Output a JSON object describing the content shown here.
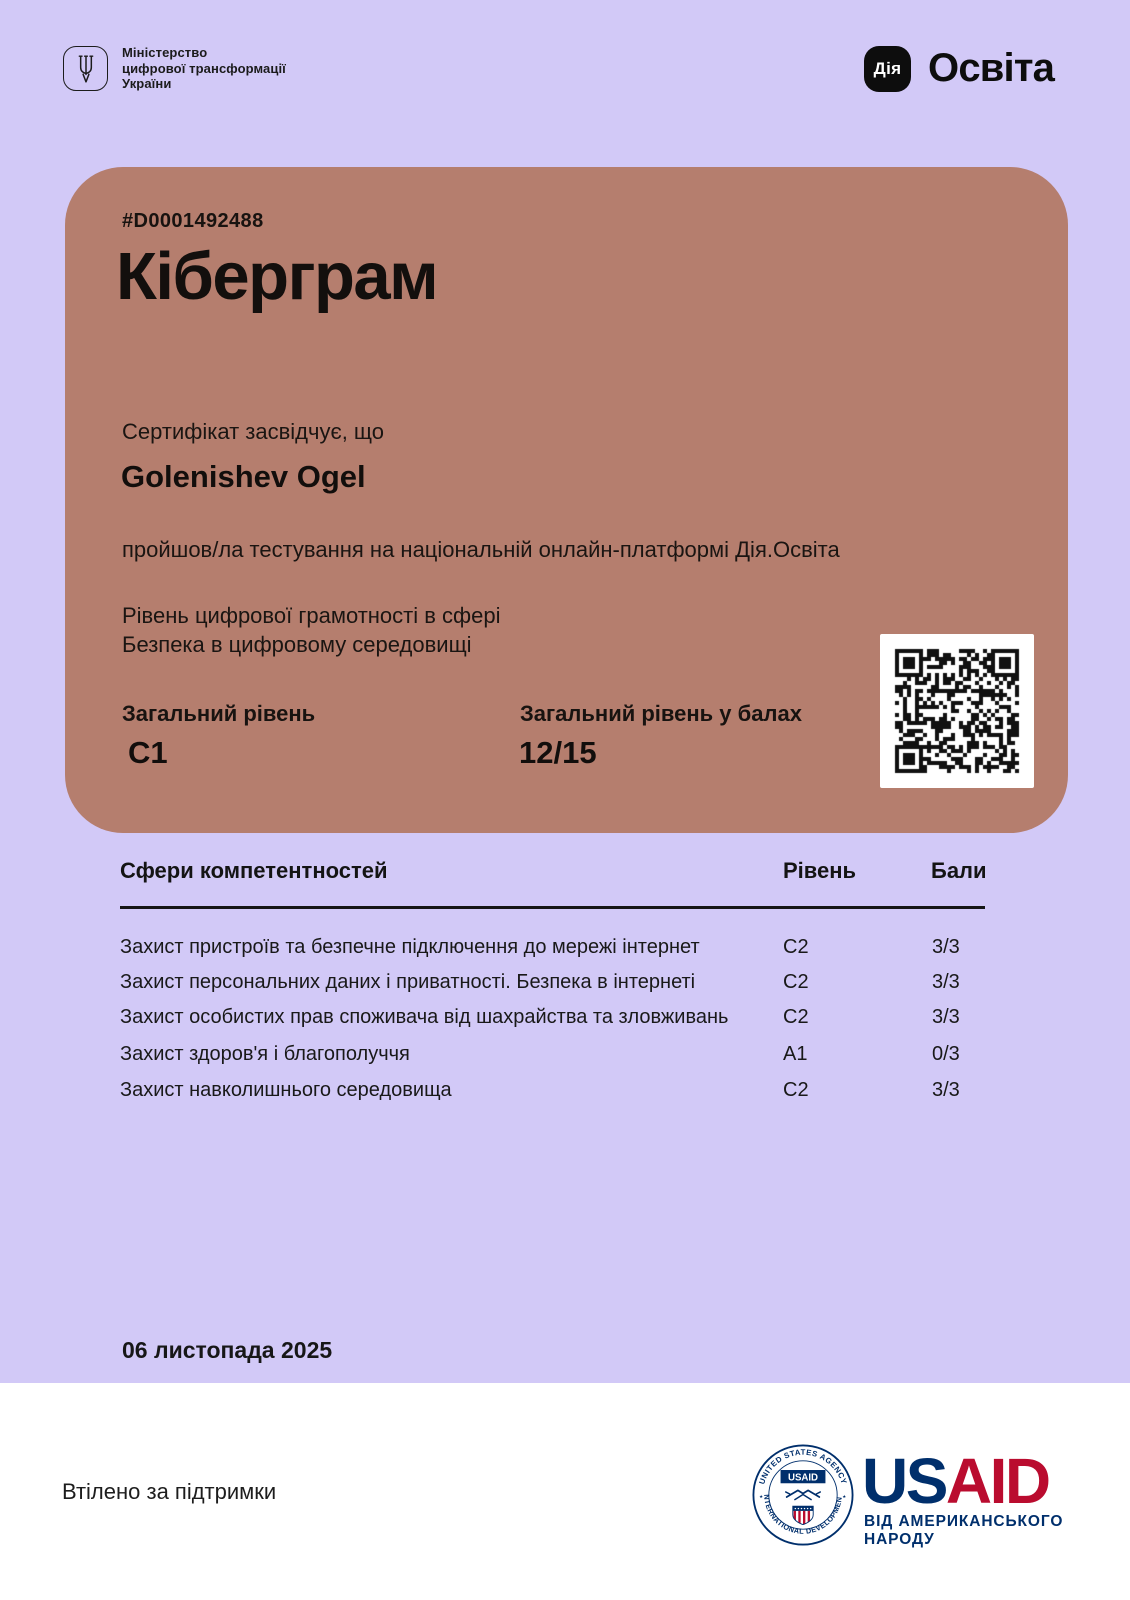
{
  "page": {
    "top_background_color": "#d2c9f7",
    "bottom_background_color": "#ffffff"
  },
  "header": {
    "ministry": {
      "logo_icon": "tryzub-icon",
      "name_lines": [
        "Міністерство",
        "цифрової трансформації",
        "України"
      ]
    },
    "brand": {
      "dia_logo_text": "Дія",
      "product_name": "Освіта"
    }
  },
  "certificate": {
    "card_color": "#b57e6e",
    "number": "#D0001492488",
    "title": "Кіберграм",
    "statement_intro": "Сертифікат засвідчує, що",
    "recipient_name": "Golenishev Ogel",
    "statement_body": "пройшов/ла тестування на національній онлайн-платформі Дія.Освіта",
    "scope_label": "Рівень цифрової грамотності в сфері",
    "scope_value": "Безпека в цифровому середовищі",
    "overall_level_label": "Загальний рівень",
    "overall_level_value": "C1",
    "overall_score_label": "Загальний рівень у балах",
    "overall_score_value": "12/15"
  },
  "competency_table": {
    "area_header": "Сфери компетентностей",
    "level_header": "Рівень",
    "score_header": "Бали",
    "rows": [
      {
        "area": "Захист пристроїв та безпечне підключення до мережі інтернет",
        "level": "C2",
        "score": "3/3"
      },
      {
        "area": "Захист персональних даних і приватності. Безпека в інтернеті",
        "level": "C2",
        "score": "3/3"
      },
      {
        "area": "Захист особистих прав споживача від шахрайства та зловживань",
        "level": "C2",
        "score": "3/3"
      },
      {
        "area": "Захист здоров'я і благополуччя",
        "level": "A1",
        "score": "0/3"
      },
      {
        "area": "Захист навколишнього середовища",
        "level": "C2",
        "score": "3/3"
      }
    ]
  },
  "issue_date": "06 листопада 2025",
  "footer": {
    "support_text": "Втілено за підтримки",
    "usaid": {
      "seal_top_text": "UNITED STATES AGENCY",
      "seal_bottom_text": "INTERNATIONAL DEVELOPMENT",
      "seal_banner_text": "USAID",
      "wordmark_us": "US",
      "wordmark_aid": "AID",
      "tagline": "ВІД АМЕРИКАНСЬКОГО НАРОДУ",
      "navy_color": "#002f6c",
      "red_color": "#ba0c2f"
    }
  }
}
